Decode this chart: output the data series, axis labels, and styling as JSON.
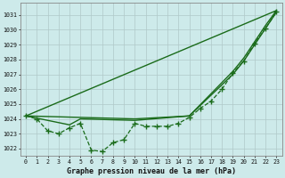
{
  "bg_color": "#cdeaea",
  "grid_color": "#b0c8c8",
  "line_color": "#1a6b1a",
  "xlabel": "Graphe pression niveau de la mer (hPa)",
  "ylim": [
    1021.5,
    1031.8
  ],
  "xlim": [
    -0.5,
    23.5
  ],
  "yticks": [
    1022,
    1023,
    1024,
    1025,
    1026,
    1027,
    1028,
    1029,
    1030,
    1031
  ],
  "xticks": [
    0,
    1,
    2,
    3,
    4,
    5,
    6,
    7,
    8,
    9,
    10,
    11,
    12,
    13,
    14,
    15,
    16,
    17,
    18,
    19,
    20,
    21,
    22,
    23
  ],
  "series": [
    {
      "x": [
        0,
        1,
        2,
        3,
        4,
        5,
        6,
        7,
        8,
        9,
        10,
        11,
        12,
        13,
        14,
        15,
        16,
        17,
        18,
        19,
        20,
        21,
        22,
        23
      ],
      "y": [
        1024.2,
        1024.0,
        1023.2,
        1023.0,
        1023.4,
        1023.7,
        1021.9,
        1021.8,
        1022.4,
        1022.6,
        1023.7,
        1023.5,
        1023.5,
        1023.5,
        1023.7,
        1024.1,
        1024.7,
        1025.2,
        1026.0,
        1027.1,
        1027.9,
        1029.1,
        1030.1,
        1031.2
      ],
      "marker": "+",
      "markersize": 4,
      "linewidth": 0.9,
      "linestyle": "--",
      "zorder": 3
    },
    {
      "x": [
        0,
        5,
        10,
        15,
        19,
        20,
        21,
        22,
        23
      ],
      "y": [
        1024.2,
        1024.1,
        1024.0,
        1024.2,
        1027.2,
        1028.1,
        1029.2,
        1030.3,
        1031.3
      ],
      "marker": null,
      "markersize": 0,
      "linewidth": 1.0,
      "linestyle": "-",
      "zorder": 2
    },
    {
      "x": [
        0,
        4,
        5,
        10,
        15,
        18,
        19,
        20,
        21,
        22,
        23
      ],
      "y": [
        1024.2,
        1023.6,
        1024.0,
        1023.9,
        1024.2,
        1026.3,
        1027.0,
        1027.9,
        1029.0,
        1030.1,
        1031.2
      ],
      "marker": null,
      "markersize": 0,
      "linewidth": 1.0,
      "linestyle": "-",
      "zorder": 2
    },
    {
      "x": [
        0,
        23
      ],
      "y": [
        1024.2,
        1031.3
      ],
      "marker": null,
      "markersize": 0,
      "linewidth": 1.0,
      "linestyle": "-",
      "zorder": 2
    }
  ]
}
